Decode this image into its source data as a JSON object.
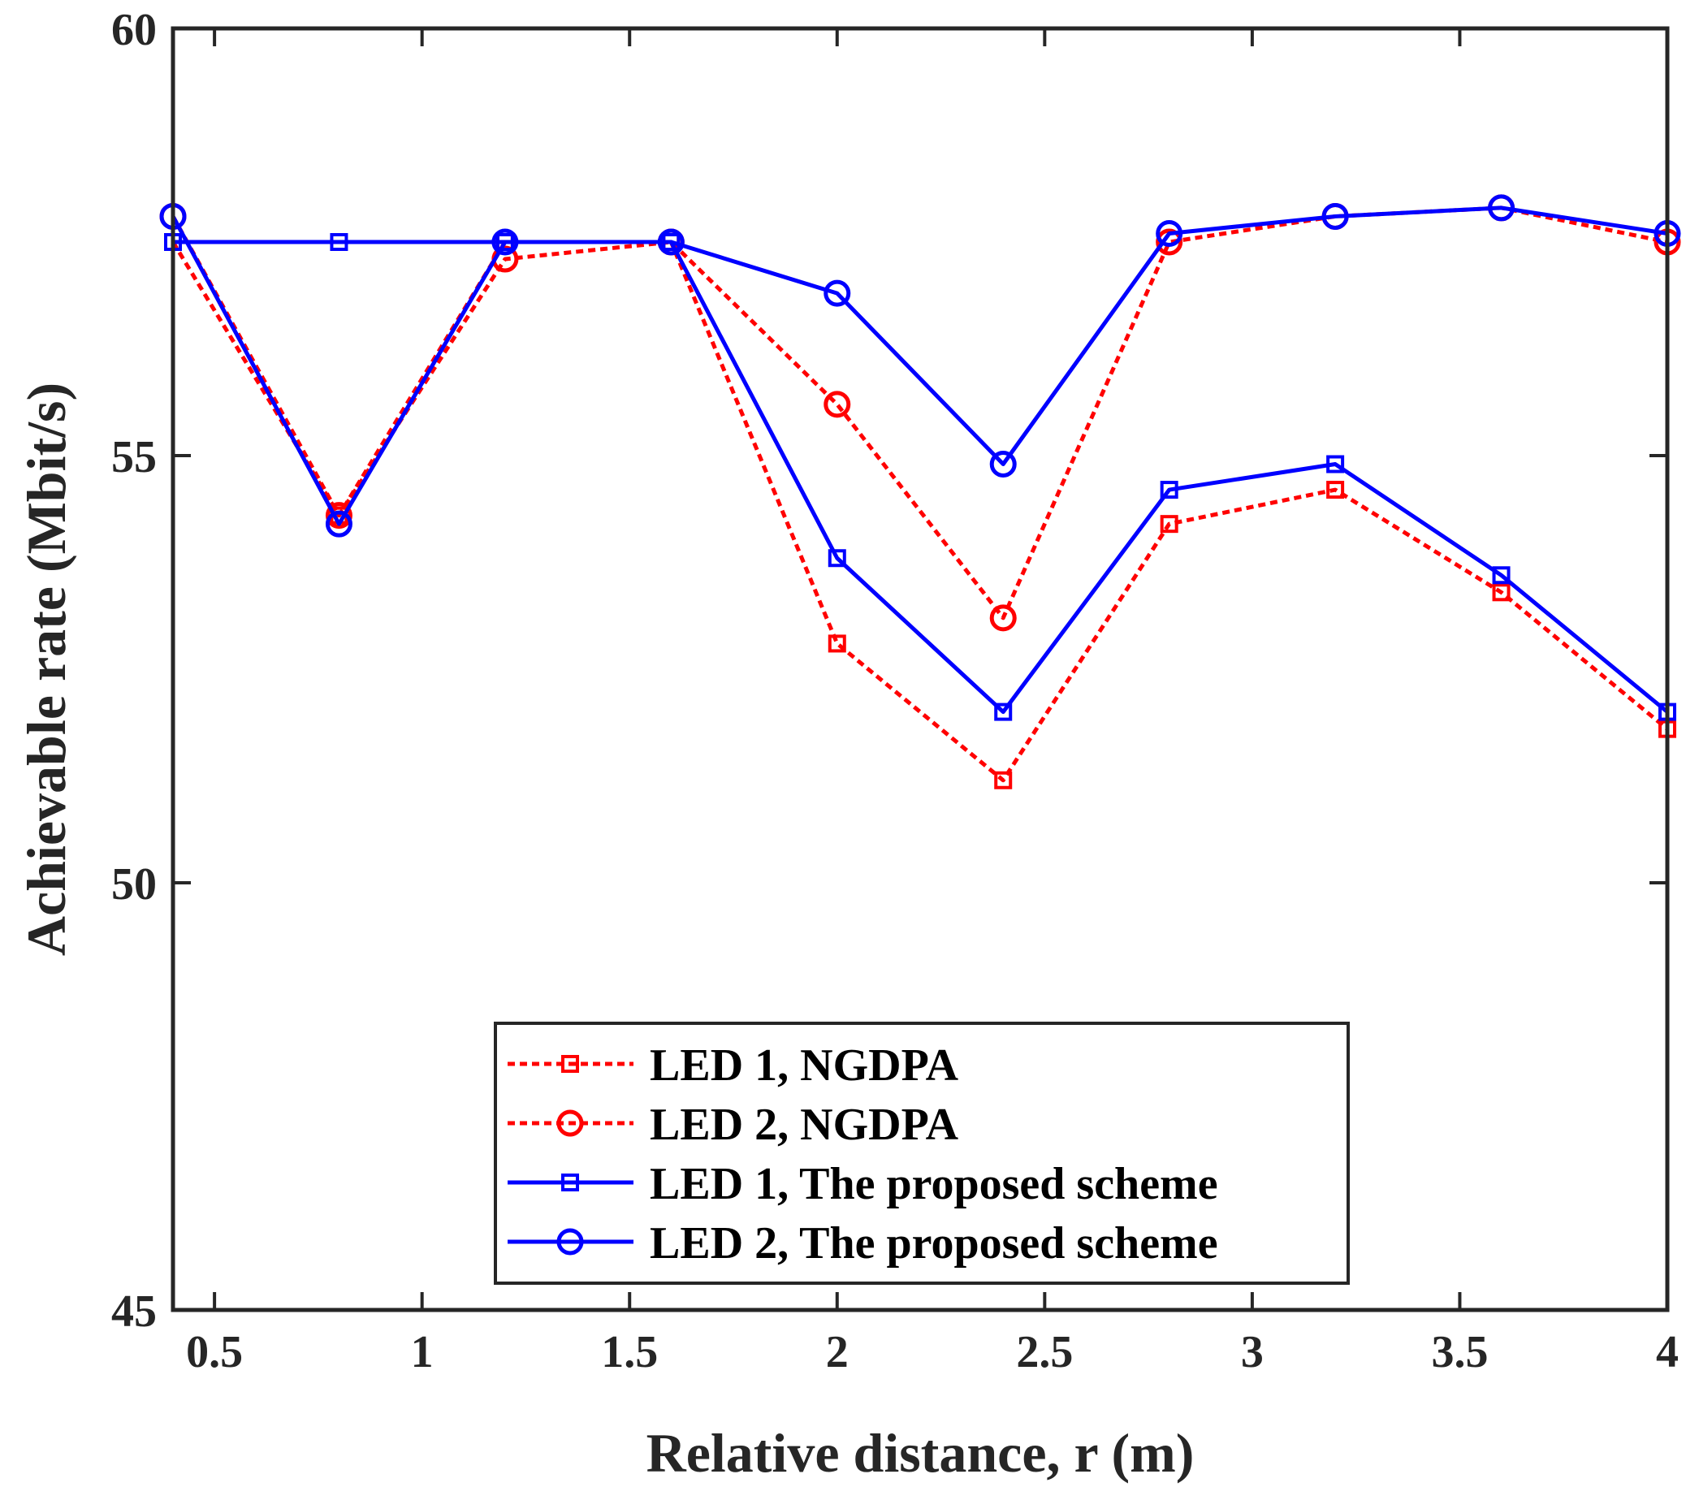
{
  "chart_data": {
    "type": "line",
    "xlabel": "Relative distance, r (m)",
    "ylabel": "Achievable rate (Mbit/s)",
    "xlim": [
      0.4,
      4.0
    ],
    "ylim": [
      45,
      60
    ],
    "xticks": [
      0.5,
      1,
      1.5,
      2,
      2.5,
      3,
      3.5,
      4
    ],
    "xtick_labels": [
      "0.5",
      "1",
      "1.5",
      "2",
      "2.5",
      "3",
      "3.5",
      "4"
    ],
    "yticks": [
      45,
      50,
      55,
      60
    ],
    "ytick_labels": [
      "45",
      "50",
      "55",
      "60"
    ],
    "grid": false,
    "legend_position": "bottom-center",
    "x": [
      0.4,
      0.8,
      1.2,
      1.6,
      2.0,
      2.4,
      2.8,
      3.2,
      3.6,
      4.0
    ],
    "series": [
      {
        "name": "LED 1, NGDPA",
        "color": "#ff0000",
        "line_style": "dotted",
        "marker": "square",
        "values": [
          57.5,
          54.3,
          57.5,
          57.5,
          52.8,
          51.2,
          54.2,
          54.6,
          53.4,
          51.8
        ]
      },
      {
        "name": "LED 2, NGDPA",
        "color": "#ff0000",
        "line_style": "dotted",
        "marker": "circle",
        "values": [
          57.8,
          54.3,
          57.3,
          57.5,
          55.6,
          53.1,
          57.5,
          57.8,
          57.9,
          57.5
        ]
      },
      {
        "name": "LED 1, The proposed scheme",
        "color": "#0000ff",
        "line_style": "solid",
        "marker": "square",
        "values": [
          57.5,
          57.5,
          57.5,
          57.5,
          53.8,
          52.0,
          54.6,
          54.9,
          53.6,
          52.0
        ]
      },
      {
        "name": "LED 2, The proposed scheme",
        "color": "#0000ff",
        "line_style": "solid",
        "marker": "circle",
        "values": [
          57.8,
          54.2,
          57.5,
          57.5,
          56.9,
          54.9,
          57.6,
          57.8,
          57.9,
          57.6
        ]
      }
    ]
  }
}
